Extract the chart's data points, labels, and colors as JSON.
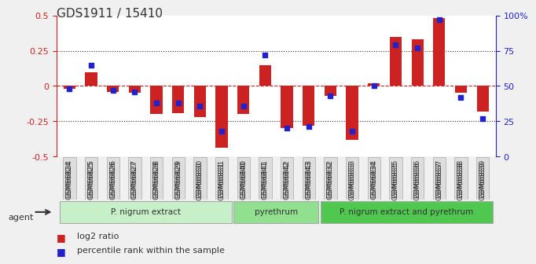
{
  "title": "GDS1911 / 15410",
  "samples": [
    "GSM66824",
    "GSM66825",
    "GSM66826",
    "GSM66827",
    "GSM66828",
    "GSM66829",
    "GSM66830",
    "GSM66831",
    "GSM66840",
    "GSM66841",
    "GSM66842",
    "GSM66843",
    "GSM66832",
    "GSM66833",
    "GSM66834",
    "GSM66835",
    "GSM66836",
    "GSM66837",
    "GSM66838",
    "GSM66839"
  ],
  "log2_ratio": [
    -0.02,
    0.1,
    -0.04,
    -0.05,
    -0.2,
    -0.19,
    -0.22,
    -0.44,
    -0.2,
    0.15,
    -0.3,
    -0.28,
    -0.07,
    -0.38,
    0.02,
    0.35,
    0.33,
    0.48,
    -0.05,
    -0.18
  ],
  "pct_rank": [
    48,
    65,
    47,
    46,
    38,
    38,
    36,
    18,
    36,
    72,
    20,
    21,
    43,
    18,
    50,
    79,
    77,
    97,
    42,
    27
  ],
  "groups": [
    {
      "label": "P. nigrum extract",
      "start": 0,
      "end": 8,
      "color": "#c8f0c8"
    },
    {
      "label": "pyrethrum",
      "start": 8,
      "end": 12,
      "color": "#90e090"
    },
    {
      "label": "P. nigrum extract and pyrethrum",
      "start": 12,
      "end": 20,
      "color": "#50c850"
    }
  ],
  "ylim_left": [
    -0.5,
    0.5
  ],
  "ylim_right": [
    0,
    100
  ],
  "yticks_left": [
    -0.5,
    -0.25,
    0,
    0.25,
    0.5
  ],
  "yticks_right": [
    0,
    25,
    50,
    75,
    100
  ],
  "bar_color_red": "#cc2222",
  "bar_color_blue": "#2222cc",
  "zero_line_color": "#cc2222",
  "hline_color": "#333333",
  "bg_color": "#ffffff",
  "title_color": "#333333",
  "left_axis_color": "#cc2222",
  "right_axis_color": "#2222cc"
}
